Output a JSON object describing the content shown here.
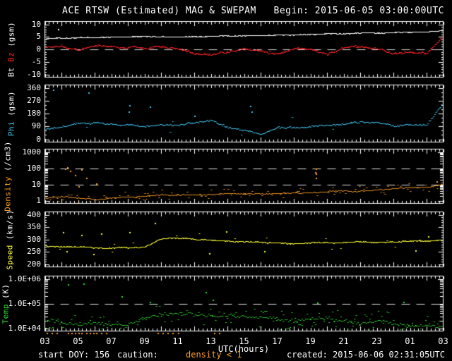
{
  "header": {
    "title": "ACE RTSW (Estimated) MAG & SWEPAM",
    "begin": "Begin: 2015-06-05 03:00:00UTC"
  },
  "footer": {
    "start_doy": "start DOY: 156",
    "caution_label": "caution:",
    "caution_value": "density < 1",
    "caution_color": "#ff9f20",
    "created": "created: 2015-06-06 02:31:05UTC"
  },
  "xaxis": {
    "label": "UTC(hours)",
    "tick_hours": [
      3,
      5,
      7,
      9,
      11,
      13,
      15,
      17,
      19,
      21,
      23,
      25,
      27
    ],
    "tick_labels": [
      "03",
      "05",
      "07",
      "09",
      "11",
      "13",
      "15",
      "17",
      "19",
      "21",
      "23",
      "01",
      "03"
    ],
    "hours_range": [
      3,
      27
    ]
  },
  "caution_markers": {
    "color": "#ff9f20",
    "hours": [
      3.1,
      3.4,
      3.7,
      4.4,
      4.6,
      4.8,
      5.0,
      5.2,
      5.5,
      5.7,
      5.9,
      6.1,
      6.4,
      6.7,
      9.8,
      10.1,
      10.4,
      10.7,
      11.0,
      13.2,
      13.5
    ]
  },
  "chart_data": [
    {
      "type": "scatter",
      "name": "bt-bz",
      "scale": "linear",
      "ylim": [
        -10,
        10
      ],
      "ytick_values": [
        10,
        5,
        0,
        -5,
        -10
      ],
      "ytick_labels": [
        "10",
        "5",
        "0",
        "-5",
        "-10"
      ],
      "minor_step": 1,
      "dashed_lines": [
        0
      ],
      "ylabel_parts": [
        {
          "text": "Bt ",
          "color": "#ffffff"
        },
        {
          "text": "Bz ",
          "color": "#ff2222"
        },
        {
          "text": "(gsm)",
          "color": "#ffffff"
        }
      ],
      "x_hours": [
        3,
        4,
        5,
        6,
        7,
        8,
        9,
        10,
        11,
        12,
        13,
        14,
        15,
        16,
        17,
        18,
        19,
        20,
        21,
        22,
        23,
        24,
        25,
        26,
        27
      ],
      "series": [
        {
          "name": "Bt",
          "color": "#ffffff",
          "values": [
            4.3,
            4.8,
            5.0,
            4.9,
            5.0,
            5.0,
            5.1,
            5.2,
            5.2,
            5.3,
            5.3,
            5.5,
            5.5,
            5.6,
            5.7,
            5.9,
            6.1,
            6.2,
            6.3,
            6.5,
            6.6,
            6.8,
            6.9,
            7.0,
            7.5
          ],
          "outliers": [
            [
              3.8,
              8.2
            ]
          ]
        },
        {
          "name": "Bz",
          "color": "#ff2222",
          "values": [
            0.5,
            2.2,
            0.5,
            2.0,
            1.5,
            1.2,
            0.8,
            1.2,
            0.0,
            -1.5,
            -2.0,
            -0.5,
            1.0,
            0.0,
            -1.0,
            1.0,
            0.5,
            -1.5,
            0.5,
            1.0,
            0.0,
            -1.5,
            -0.5,
            -1.0,
            5.5
          ],
          "outliers": []
        }
      ]
    },
    {
      "type": "scatter",
      "name": "phi",
      "scale": "linear",
      "ylim": [
        0,
        360
      ],
      "ytick_values": [
        360,
        270,
        180,
        90,
        0
      ],
      "ytick_labels": [
        "360",
        "270",
        "180",
        "90",
        "0"
      ],
      "minor_step": 30,
      "dashed_lines": [],
      "ylabel_parts": [
        {
          "text": "Phi ",
          "color": "#3fc8f4"
        },
        {
          "text": "(gsm)",
          "color": "#ffffff"
        }
      ],
      "x_hours": [
        3,
        4,
        5,
        6,
        7,
        8,
        9,
        10,
        11,
        12,
        13,
        14,
        15,
        16,
        17,
        18,
        19,
        20,
        21,
        22,
        23,
        24,
        25,
        26,
        27
      ],
      "series": [
        {
          "name": "Phi",
          "color": "#3fc8f4",
          "values": [
            75,
            90,
            110,
            120,
            100,
            95,
            85,
            95,
            90,
            115,
            130,
            90,
            70,
            50,
            100,
            95,
            95,
            100,
            110,
            130,
            120,
            105,
            110,
            105,
            260
          ],
          "outliers": [
            [
              3.5,
              350
            ],
            [
              5.6,
              330
            ],
            [
              8.05,
              195
            ],
            [
              8.1,
              240
            ],
            [
              9.3,
              230
            ],
            [
              12.0,
              165
            ],
            [
              15.35,
              235
            ],
            [
              15.45,
              195
            ]
          ]
        }
      ]
    },
    {
      "type": "scatter",
      "name": "density",
      "scale": "log",
      "ylim": [
        1,
        1000
      ],
      "ytick_values": [
        1000,
        100,
        10,
        1
      ],
      "ytick_labels": [
        "1000",
        "100",
        "10",
        "1"
      ],
      "dashed_lines": [
        100,
        10
      ],
      "ylabel_parts": [
        {
          "text": "Density ",
          "color": "#ff9f20"
        },
        {
          "text": "(/cm3)",
          "color": "#ffffff"
        }
      ],
      "x_hours": [
        3,
        4,
        5,
        6,
        7,
        8,
        9,
        10,
        11,
        12,
        13,
        14,
        15,
        16,
        17,
        18,
        19,
        20,
        21,
        22,
        23,
        24,
        25,
        26,
        27
      ],
      "series": [
        {
          "name": "Density",
          "color": "#ff9f20",
          "values": [
            1.4,
            1.8,
            1.5,
            1.2,
            1.5,
            1.8,
            2.0,
            2.4,
            2.2,
            2.3,
            2.6,
            3.0,
            2.8,
            3.0,
            3.2,
            3.0,
            3.4,
            3.8,
            4.2,
            4.0,
            5.0,
            5.5,
            6.5,
            7.5,
            10.0
          ],
          "outliers": [
            [
              4.2,
              95
            ],
            [
              4.35,
              120
            ],
            [
              4.5,
              70
            ],
            [
              4.8,
              40
            ],
            [
              5.0,
              8
            ],
            [
              5.2,
              90
            ],
            [
              5.5,
              25
            ],
            [
              6.1,
              12
            ],
            [
              19.28,
              60
            ],
            [
              19.3,
              95
            ],
            [
              19.3,
              45
            ],
            [
              19.32,
              25
            ],
            [
              26.6,
              15
            ]
          ]
        }
      ]
    },
    {
      "type": "scatter",
      "name": "speed",
      "scale": "linear",
      "ylim": [
        200,
        400
      ],
      "ytick_values": [
        400,
        350,
        300,
        250,
        200
      ],
      "ytick_labels": [
        "400",
        "350",
        "300",
        "250",
        "200"
      ],
      "minor_step": 10,
      "dashed_lines": [],
      "ylabel_parts": [
        {
          "text": "Speed ",
          "color": "#ffff33"
        },
        {
          "text": "(km/s)",
          "color": "#ffffff"
        }
      ],
      "x_hours": [
        3,
        4,
        5,
        6,
        7,
        8,
        9,
        10,
        11,
        12,
        13,
        14,
        15,
        16,
        17,
        18,
        19,
        20,
        21,
        22,
        23,
        24,
        25,
        26,
        27
      ],
      "series": [
        {
          "name": "Speed",
          "color": "#ffff33",
          "values": [
            275,
            272,
            270,
            269,
            268,
            269,
            272,
            305,
            308,
            303,
            298,
            295,
            292,
            290,
            286,
            280,
            284,
            286,
            288,
            291,
            289,
            292,
            294,
            297,
            300
          ],
          "outliers": [
            [
              4.1,
              330
            ],
            [
              4.3,
              252
            ],
            [
              5.2,
              318
            ],
            [
              5.9,
              242
            ],
            [
              6.4,
              325
            ],
            [
              8.1,
              330
            ],
            [
              9.6,
              368
            ],
            [
              12.9,
              243
            ],
            [
              13.9,
              332
            ],
            [
              16.2,
              252
            ],
            [
              25.3,
              256
            ],
            [
              26.1,
              312
            ]
          ]
        }
      ]
    },
    {
      "type": "scatter",
      "name": "temp",
      "scale": "log",
      "ylim": [
        10000,
        1000000
      ],
      "ytick_values": [
        1000000,
        100000,
        10000
      ],
      "ytick_labels": [
        "1.0E+06",
        "1.0E+05",
        "1.0E+04"
      ],
      "dashed_lines": [
        100000
      ],
      "ylabel_parts": [
        {
          "text": "Temp ",
          "color": "#33dd33"
        },
        {
          "text": "(K)",
          "color": "#ffffff"
        }
      ],
      "x_hours": [
        3,
        4,
        5,
        6,
        7,
        8,
        9,
        10,
        11,
        12,
        13,
        14,
        15,
        16,
        17,
        18,
        19,
        20,
        21,
        22,
        23,
        24,
        25,
        26,
        27
      ],
      "series": [
        {
          "name": "Temp",
          "color": "#33dd33",
          "values": [
            22000,
            18000,
            16000,
            17000,
            15000,
            15000,
            24000,
            38000,
            42000,
            36000,
            32000,
            33000,
            28000,
            25000,
            22000,
            20000,
            23000,
            27000,
            21000,
            18000,
            22000,
            17000,
            15000,
            17000,
            13000
          ],
          "outliers": [
            [
              4.4,
              600000
            ],
            [
              5.3,
              650000
            ],
            [
              7.6,
              200000
            ],
            [
              9.3,
              120000
            ],
            [
              12.7,
              300000
            ],
            [
              13.1,
              140000
            ],
            [
              19.4,
              110000
            ],
            [
              24.6,
              120000
            ]
          ]
        }
      ]
    }
  ]
}
